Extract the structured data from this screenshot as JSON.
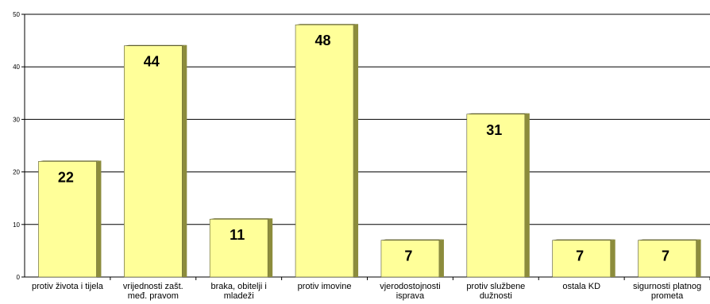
{
  "chart_data": {
    "type": "bar",
    "title": "",
    "xlabel": "",
    "ylabel": "",
    "ylim": [
      0,
      50
    ],
    "yticks": [
      0,
      10,
      20,
      30,
      40,
      50
    ],
    "grid": true,
    "legend": "none",
    "bar_color": "#ffff99",
    "bar_side_color": "#8c8c3c",
    "categories": [
      [
        "protiv života i tijela"
      ],
      [
        "vrijednosti zašt.",
        "međ. pravom"
      ],
      [
        "braka, obitelji i",
        "mladeži"
      ],
      [
        "protiv imovine"
      ],
      [
        "vjerodostojnosti",
        "isprava"
      ],
      [
        "protiv službene",
        "dužnosti"
      ],
      [
        "ostala KD"
      ],
      [
        "sigurnosti platnog",
        "prometa"
      ]
    ],
    "values": [
      22,
      44,
      11,
      48,
      7,
      31,
      7,
      7
    ],
    "value_labels": [
      "22",
      "44",
      "11",
      "48",
      "7",
      "31",
      "7",
      "7"
    ]
  }
}
